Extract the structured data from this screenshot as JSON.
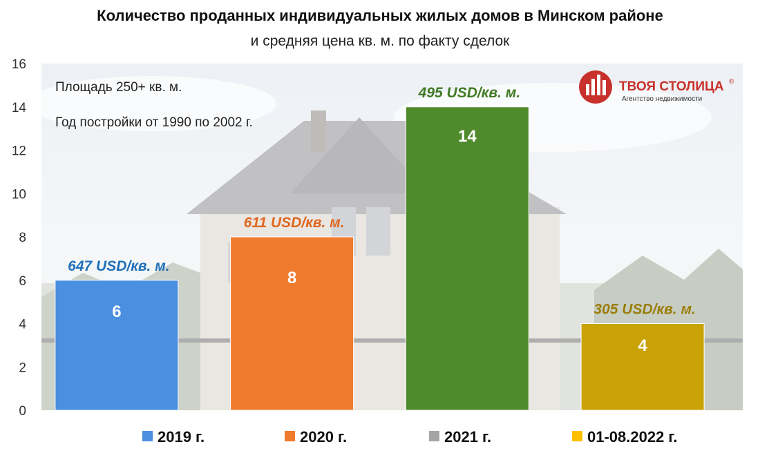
{
  "title": "Количество проданных индивидуальных жилых домов в Минском районе",
  "subtitle": "и средняя цена кв. м. по факту сделок",
  "notes": [
    "Площадь 250+ кв. м.",
    "Год постройки от 1990 по 2002 г."
  ],
  "logo": {
    "brand": "ТВОЯ СТОЛИЦА",
    "registered": "®",
    "tagline": "Агентство недвижимости",
    "color": "#c8312b"
  },
  "chart_data": {
    "type": "bar",
    "title": "Количество проданных индивидуальных жилых домов в Минском районе",
    "subtitle": "и средняя цена кв. м. по факту сделок",
    "xlabel": "",
    "ylabel": "",
    "ylim": [
      0,
      16
    ],
    "yticks": [
      0,
      2,
      4,
      6,
      8,
      10,
      12,
      14,
      16
    ],
    "grid": false,
    "legend_position": "bottom",
    "categories": [
      "2019 г.",
      "2020 г.",
      "2021 г.",
      "01-08.2022 г."
    ],
    "values": [
      6,
      8,
      14,
      4
    ],
    "price_labels": [
      "647 USD/кв. м.",
      "611 USD/кв. м.",
      "495 USD/кв. м.",
      "305 USD/кв. м."
    ],
    "bar_colors": [
      "#4a8fe0",
      "#f07a2e",
      "#4f8a2c",
      "#c9a306"
    ],
    "price_label_colors": [
      "#1f6fb8",
      "#e0661e",
      "#3f7a24",
      "#9a7d0a"
    ],
    "legend": [
      {
        "label": "2019 г.",
        "color": "#4a8fe0"
      },
      {
        "label": "2020 г.",
        "color": "#f07a2e"
      },
      {
        "label": "2021 г.",
        "color": "#a5a5a5"
      },
      {
        "label": "01-08.2022 г.",
        "color": "#ffc000"
      }
    ]
  }
}
